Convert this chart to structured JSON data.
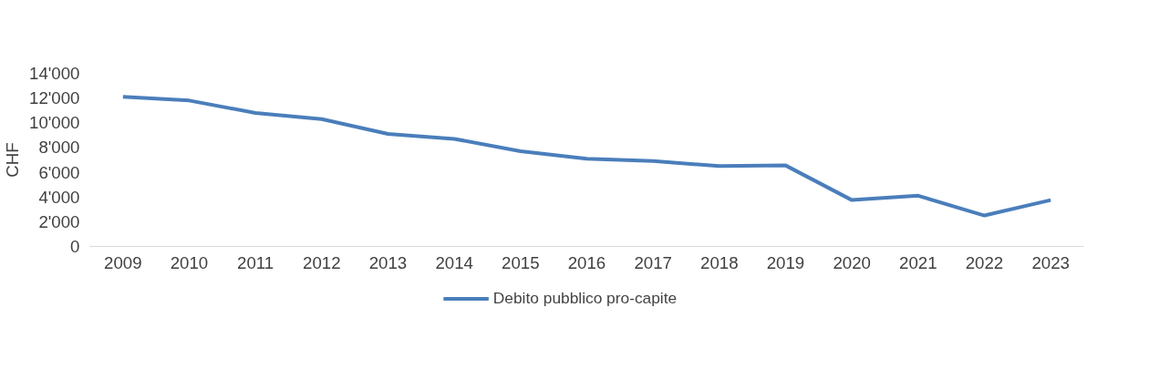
{
  "chart_data": {
    "type": "line",
    "ylabel": "CHF",
    "categories": [
      "2009",
      "2010",
      "2011",
      "2012",
      "2013",
      "2014",
      "2015",
      "2016",
      "2017",
      "2018",
      "2019",
      "2020",
      "2021",
      "2022",
      "2023"
    ],
    "series": [
      {
        "name": "Debito pubblico pro-capite",
        "color": "#4a7ebb",
        "values": [
          12100,
          11800,
          10800,
          10300,
          9100,
          8700,
          7700,
          7100,
          6900,
          6500,
          6550,
          3750,
          4100,
          2500,
          3750
        ]
      }
    ],
    "ylim": [
      0,
      14000
    ],
    "yticks": [
      {
        "value": 0,
        "label": "0"
      },
      {
        "value": 2000,
        "label": "2'000"
      },
      {
        "value": 4000,
        "label": "4'000"
      },
      {
        "value": 6000,
        "label": "6'000"
      },
      {
        "value": 8000,
        "label": "8'000"
      },
      {
        "value": 10000,
        "label": "10'000"
      },
      {
        "value": 12000,
        "label": "12'000"
      },
      {
        "value": 14000,
        "label": "14'000"
      }
    ],
    "grid": false,
    "legend": "bottom",
    "marker": "none",
    "line_style": "solid"
  }
}
